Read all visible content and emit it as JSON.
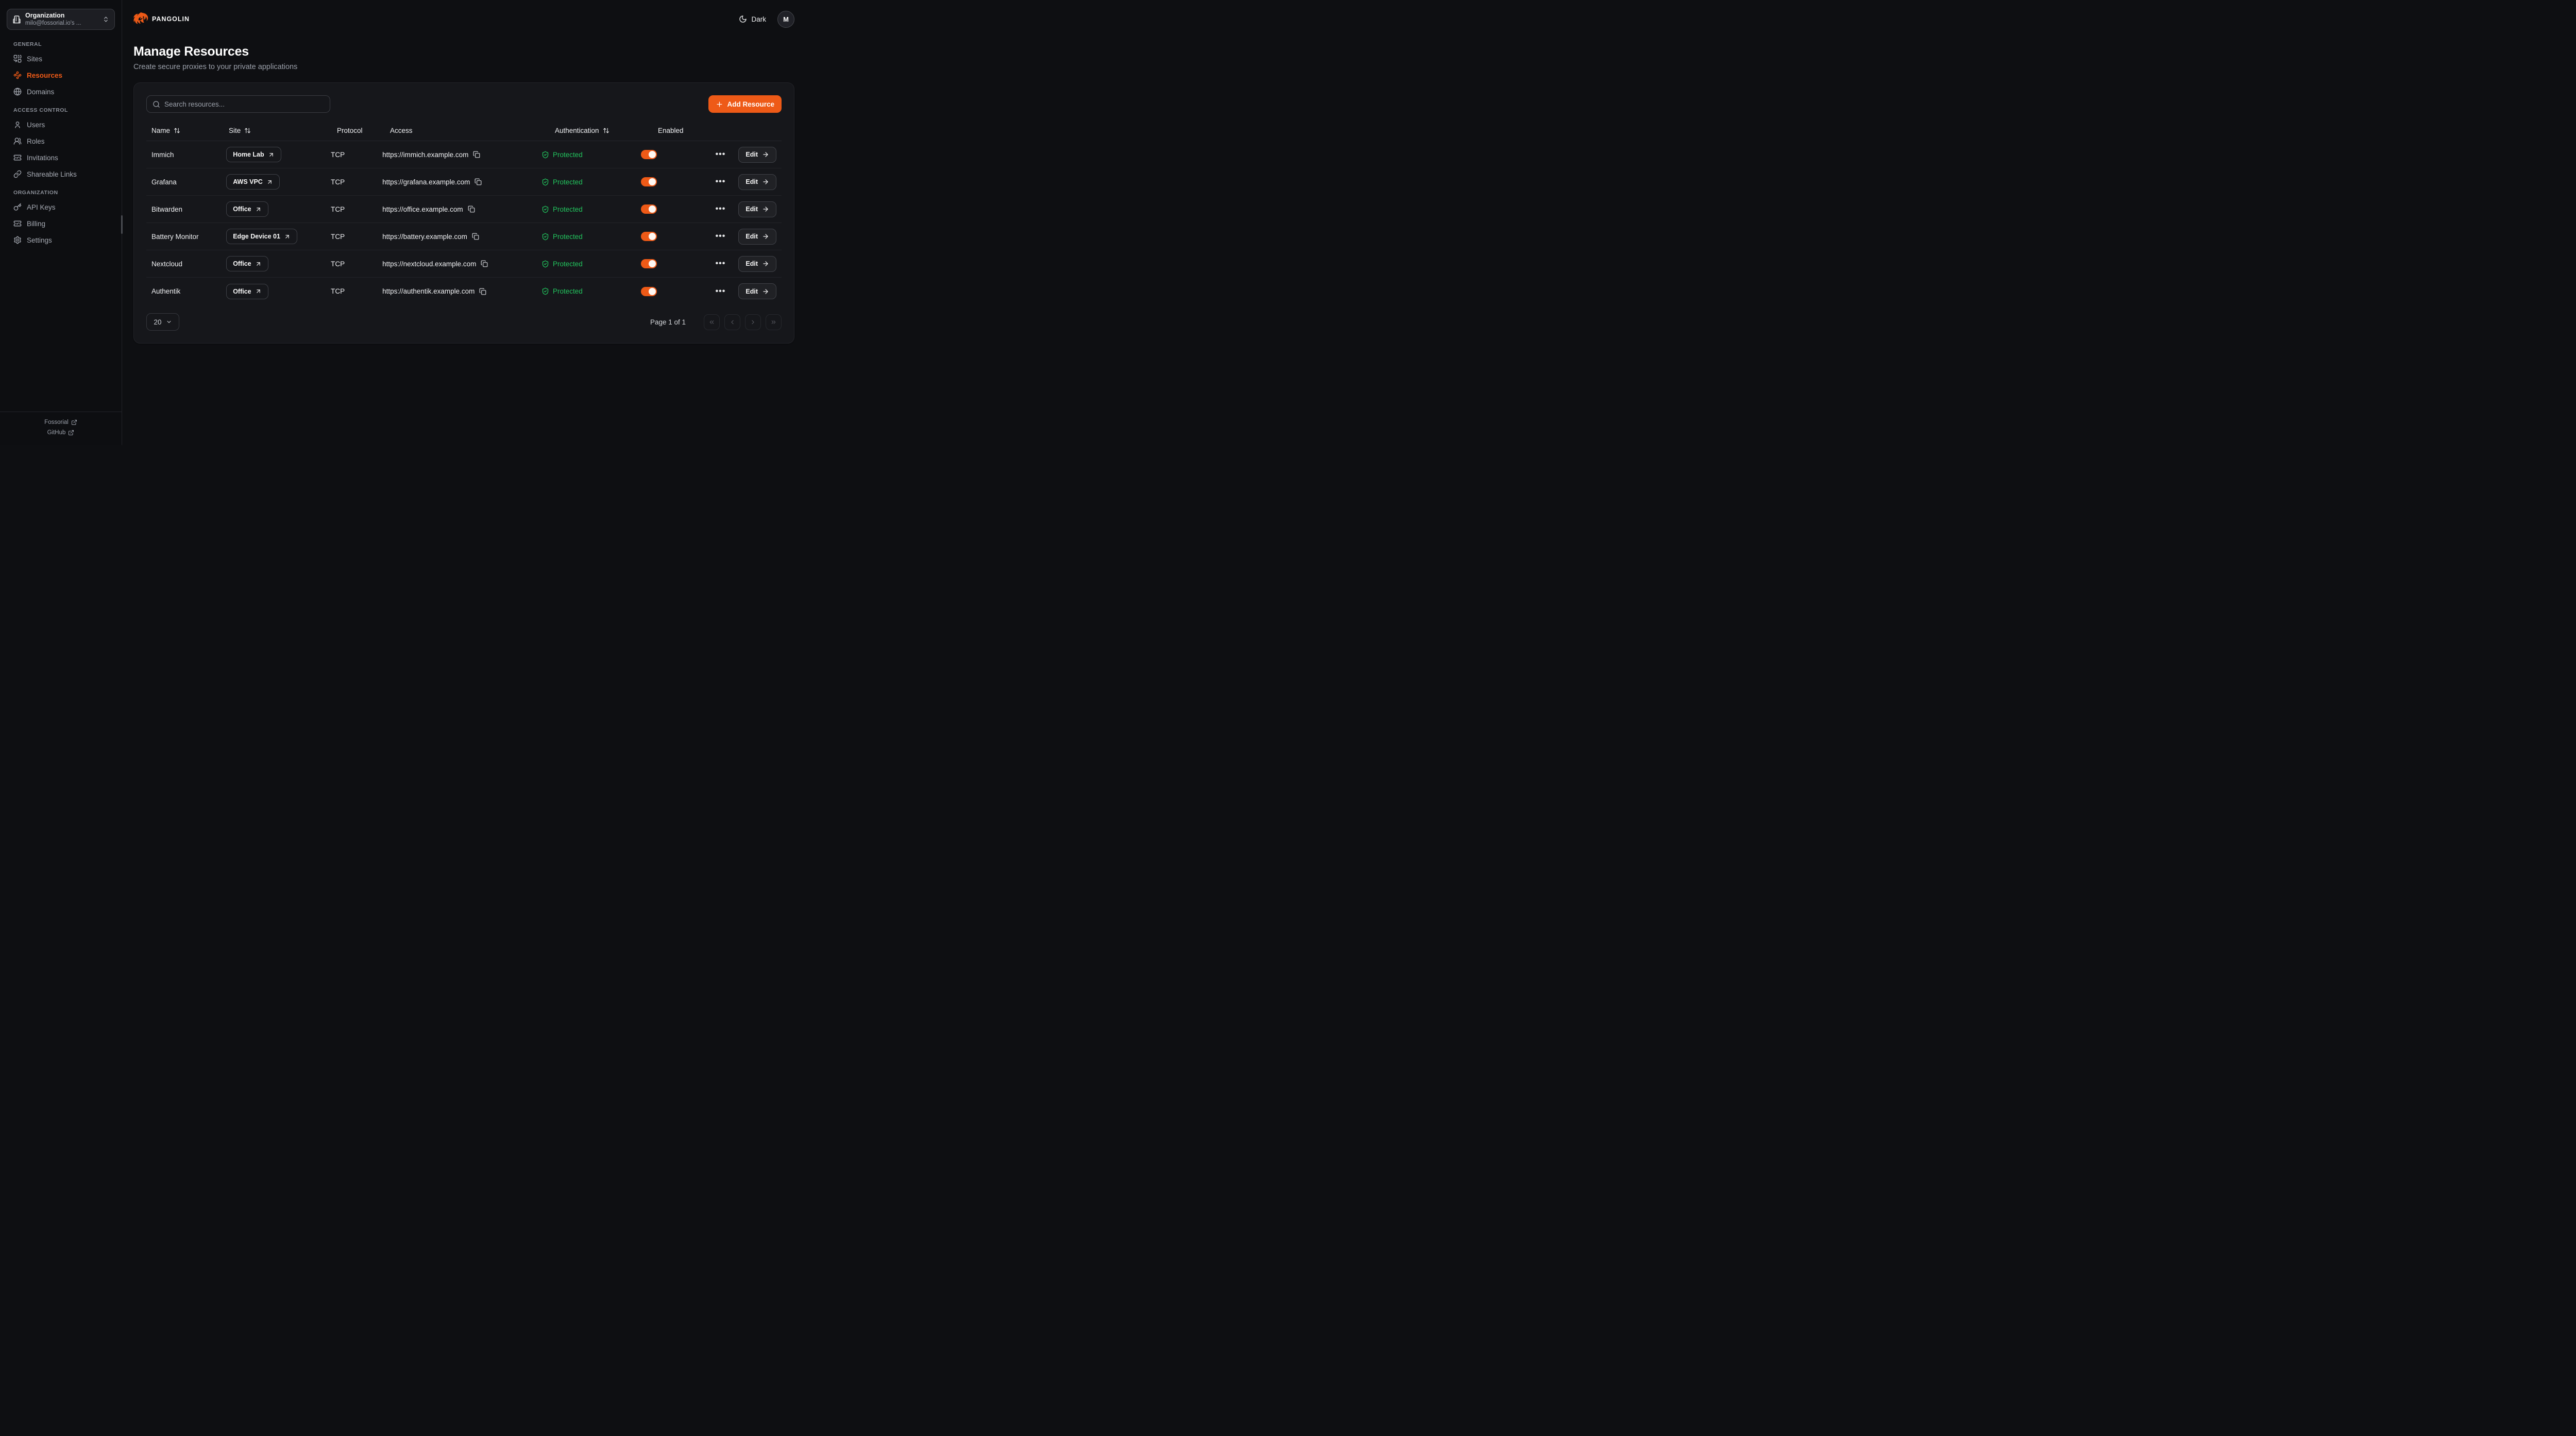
{
  "colors": {
    "accent": "#ee5a17",
    "green": "#22c55e"
  },
  "sidebar": {
    "org_selector": {
      "title": "Organization",
      "subtitle": "milo@fossorial.io's ...",
      "icon": "building-icon",
      "chevron": "chevrons-up-down-icon"
    },
    "sections": [
      {
        "label": "GENERAL",
        "items": [
          {
            "label": "Sites",
            "icon": "sites-icon",
            "active": false
          },
          {
            "label": "Resources",
            "icon": "resources-icon",
            "active": true
          },
          {
            "label": "Domains",
            "icon": "globe-icon",
            "active": false
          }
        ]
      },
      {
        "label": "ACCESS CONTROL",
        "items": [
          {
            "label": "Users",
            "icon": "user-icon",
            "active": false
          },
          {
            "label": "Roles",
            "icon": "users-icon",
            "active": false
          },
          {
            "label": "Invitations",
            "icon": "ticket-check-icon",
            "active": false
          },
          {
            "label": "Shareable Links",
            "icon": "link-icon",
            "active": false
          }
        ]
      },
      {
        "label": "ORGANIZATION",
        "items": [
          {
            "label": "API Keys",
            "icon": "key-icon",
            "active": false
          },
          {
            "label": "Billing",
            "icon": "ticket-check-icon",
            "active": false
          },
          {
            "label": "Settings",
            "icon": "gear-icon",
            "active": false
          }
        ]
      }
    ],
    "footer_links": [
      {
        "label": "Fossorial",
        "icon": "external-link-icon"
      },
      {
        "label": "GitHub",
        "icon": "external-link-icon"
      }
    ]
  },
  "topbar": {
    "brand": "PANGOLIN",
    "theme_label": "Dark",
    "avatar_initial": "M"
  },
  "page": {
    "title": "Manage Resources",
    "subtitle": "Create secure proxies to your private applications"
  },
  "toolbar": {
    "search_placeholder": "Search resources...",
    "add_label": "Add Resource"
  },
  "table": {
    "columns": [
      {
        "label": "Name",
        "sortable": true
      },
      {
        "label": "Site",
        "sortable": true
      },
      {
        "label": "Protocol",
        "sortable": false
      },
      {
        "label": "Access",
        "sortable": false
      },
      {
        "label": "Authentication",
        "sortable": true
      },
      {
        "label": "Enabled",
        "sortable": false
      }
    ],
    "edit_label": "Edit",
    "rows": [
      {
        "name": "Immich",
        "site": "Home Lab",
        "protocol": "TCP",
        "access": "https://immich.example.com",
        "auth": "Protected",
        "enabled": true
      },
      {
        "name": "Grafana",
        "site": "AWS VPC",
        "protocol": "TCP",
        "access": "https://grafana.example.com",
        "auth": "Protected",
        "enabled": true
      },
      {
        "name": "Bitwarden",
        "site": "Office",
        "protocol": "TCP",
        "access": "https://office.example.com",
        "auth": "Protected",
        "enabled": true
      },
      {
        "name": "Battery Monitor",
        "site": "Edge Device 01",
        "protocol": "TCP",
        "access": "https://battery.example.com",
        "auth": "Protected",
        "enabled": true
      },
      {
        "name": "Nextcloud",
        "site": "Office",
        "protocol": "TCP",
        "access": "https://nextcloud.example.com",
        "auth": "Protected",
        "enabled": true
      },
      {
        "name": "Authentik",
        "site": "Office",
        "protocol": "TCP",
        "access": "https://authentik.example.com",
        "auth": "Protected",
        "enabled": true
      }
    ]
  },
  "pagination": {
    "page_size": "20",
    "label": "Page 1 of 1"
  }
}
